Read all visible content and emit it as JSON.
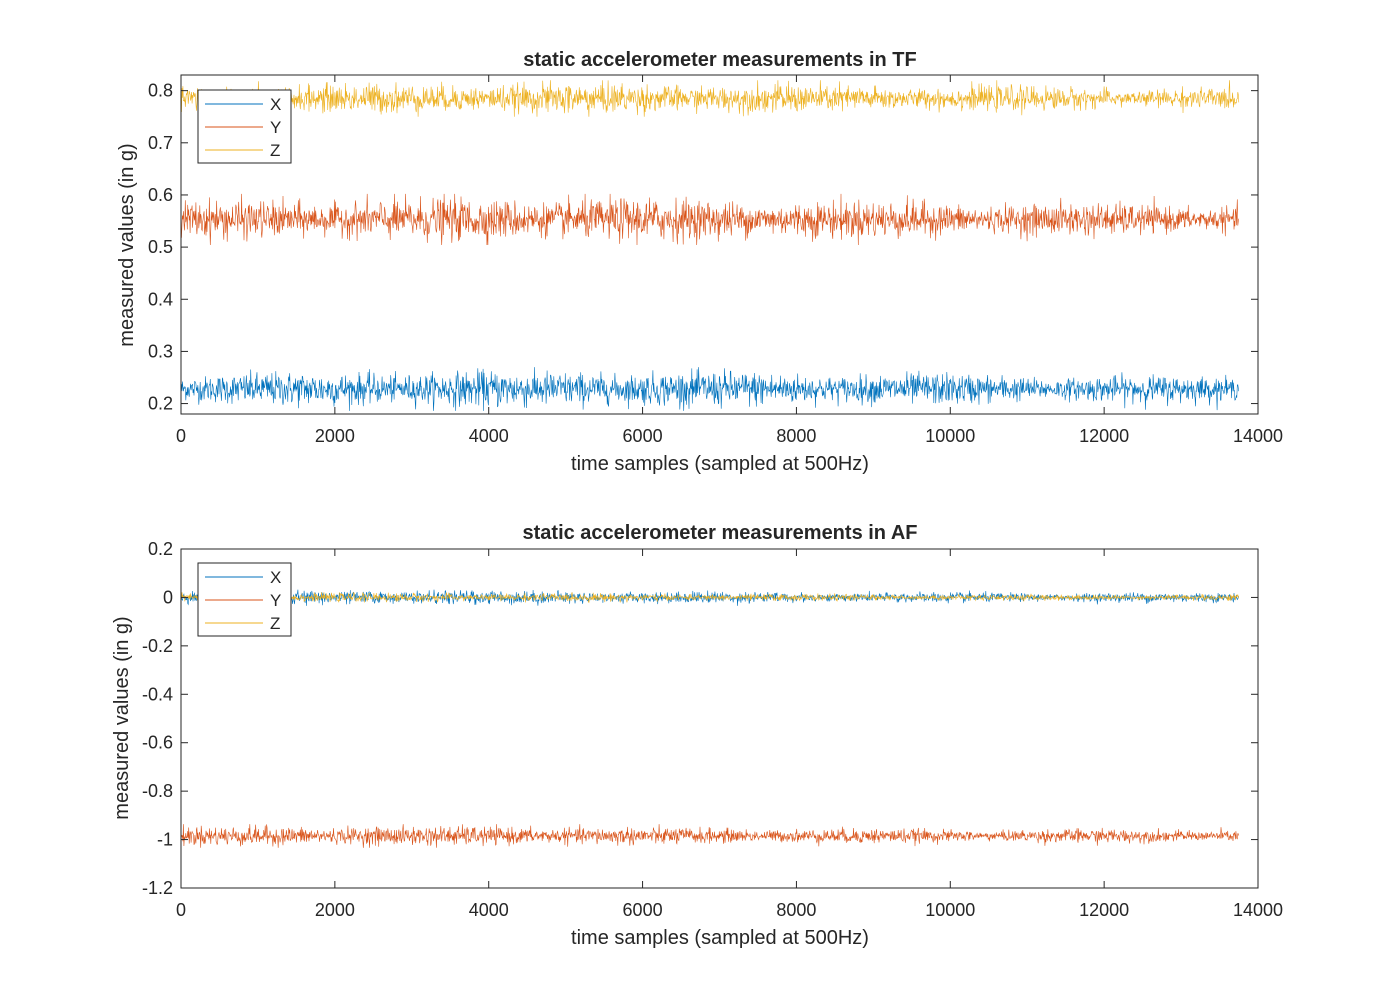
{
  "colors": {
    "X": "#0072BD",
    "Y": "#D95319",
    "Z": "#EDB120",
    "axis": "#262626",
    "background": "#ffffff"
  },
  "chart_data": [
    {
      "type": "line",
      "title": "static accelerometer measurements in TF",
      "xlabel": "time samples (sampled at 500Hz)",
      "ylabel": "measured values (in g)",
      "xlim": [
        0,
        14000
      ],
      "ylim": [
        0.18,
        0.83
      ],
      "xticks": [
        0,
        2000,
        4000,
        6000,
        8000,
        10000,
        12000,
        14000
      ],
      "xtick_labels": [
        "0",
        "2000",
        "4000",
        "6000",
        "8000",
        "10000",
        "12000",
        "14000"
      ],
      "yticks": [
        0.2,
        0.3,
        0.4,
        0.5,
        0.6,
        0.7,
        0.8
      ],
      "ytick_labels": [
        "0.2",
        "0.3",
        "0.4",
        "0.5",
        "0.6",
        "0.7",
        "0.8"
      ],
      "legend_position": "top-left",
      "grid": false,
      "n_samples": 13750,
      "series": [
        {
          "name": "X",
          "mean": 0.228,
          "noise_amplitude": 0.03,
          "color": "#0072BD"
        },
        {
          "name": "Y",
          "mean": 0.553,
          "noise_amplitude": 0.035,
          "color": "#D95319"
        },
        {
          "name": "Z",
          "mean": 0.785,
          "noise_amplitude": 0.025,
          "color": "#EDB120"
        }
      ]
    },
    {
      "type": "line",
      "title": "static accelerometer measurements in AF",
      "xlabel": "time samples (sampled at 500Hz)",
      "ylabel": "measured values (in g)",
      "xlim": [
        0,
        14000
      ],
      "ylim": [
        -1.2,
        0.2
      ],
      "xticks": [
        0,
        2000,
        4000,
        6000,
        8000,
        10000,
        12000,
        14000
      ],
      "xtick_labels": [
        "0",
        "2000",
        "4000",
        "6000",
        "8000",
        "10000",
        "12000",
        "14000"
      ],
      "yticks": [
        -1.2,
        -1,
        -0.8,
        -0.6,
        -0.4,
        -0.2,
        0,
        0.2
      ],
      "ytick_labels": [
        "-1.2",
        "-1",
        "-0.8",
        "-0.6",
        "-0.4",
        "-0.2",
        "0",
        "0.2"
      ],
      "legend_position": "top-left",
      "grid": false,
      "n_samples": 13750,
      "series": [
        {
          "name": "X",
          "mean": 0.0,
          "noise_amplitude": 0.025,
          "color": "#0072BD"
        },
        {
          "name": "Y",
          "mean": -0.985,
          "noise_amplitude": 0.035,
          "color": "#D95319"
        },
        {
          "name": "Z",
          "mean": 0.0,
          "noise_amplitude": 0.015,
          "color": "#EDB120"
        }
      ]
    }
  ]
}
